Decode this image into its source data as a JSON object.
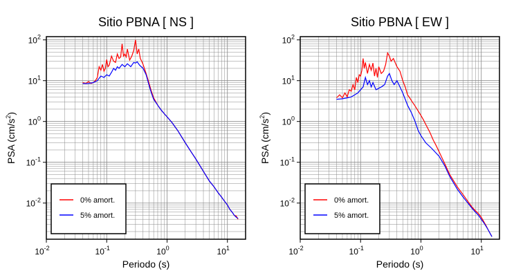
{
  "chart_data": [
    {
      "type": "line",
      "title": "Sitio PBNA [ NS ]",
      "xlabel": "Periodo (s)",
      "ylabel_main": "PSA (cm/s",
      "ylabel_sup": "2",
      "ylabel_tail": ")",
      "xscale": "log",
      "yscale": "log",
      "xlim": [
        0.01,
        20
      ],
      "ylim": [
        0.0013,
        120
      ],
      "grid": true,
      "legend_placement": "bottom-left",
      "x_ticks": [
        {
          "base": "10",
          "exp": "-2",
          "value": 0.01
        },
        {
          "base": "10",
          "exp": "-1",
          "value": 0.1
        },
        {
          "base": "10",
          "exp": "0",
          "value": 1
        },
        {
          "base": "10",
          "exp": "1",
          "value": 10
        }
      ],
      "y_ticks": [
        {
          "base": "10",
          "exp": "-2",
          "value": 0.01
        },
        {
          "base": "10",
          "exp": "-1",
          "value": 0.1
        },
        {
          "base": "10",
          "exp": "0",
          "value": 1
        },
        {
          "base": "10",
          "exp": "1",
          "value": 10
        },
        {
          "base": "10",
          "exp": "2",
          "value": 100
        }
      ],
      "series": [
        {
          "name": "0% amort.",
          "color": "#ff0000",
          "x": [
            0.04,
            0.045,
            0.05,
            0.055,
            0.06,
            0.065,
            0.07,
            0.075,
            0.08,
            0.085,
            0.09,
            0.095,
            0.1,
            0.105,
            0.11,
            0.12,
            0.13,
            0.14,
            0.15,
            0.16,
            0.17,
            0.18,
            0.19,
            0.2,
            0.21,
            0.22,
            0.24,
            0.26,
            0.28,
            0.3,
            0.32,
            0.34,
            0.36,
            0.38,
            0.4,
            0.45,
            0.5,
            0.55,
            0.6,
            0.7,
            0.8,
            0.9,
            1.0,
            1.2,
            1.5,
            2.0,
            2.5,
            3.0,
            4.0,
            5.0,
            6.0,
            7.0,
            8.0,
            9.0,
            10.0,
            11.0,
            12.0,
            13.0,
            14.0,
            15.0
          ],
          "y": [
            9,
            8.5,
            9.5,
            8.5,
            9,
            10,
            12,
            22,
            18,
            25,
            17,
            20,
            33,
            22,
            24,
            40,
            30,
            28,
            45,
            35,
            38,
            80,
            40,
            45,
            38,
            60,
            32,
            40,
            55,
            100,
            45,
            60,
            35,
            30,
            25,
            15,
            9,
            5.5,
            3.8,
            2.5,
            1.9,
            1.55,
            1.3,
            0.95,
            0.6,
            0.3,
            0.18,
            0.12,
            0.06,
            0.035,
            0.025,
            0.018,
            0.014,
            0.011,
            0.009,
            0.007,
            0.006,
            0.005,
            0.0048,
            0.004
          ]
        },
        {
          "name": "5% amort.",
          "color": "#0000ff",
          "x": [
            0.04,
            0.05,
            0.06,
            0.07,
            0.08,
            0.09,
            0.1,
            0.11,
            0.12,
            0.13,
            0.14,
            0.15,
            0.16,
            0.18,
            0.2,
            0.22,
            0.25,
            0.28,
            0.3,
            0.32,
            0.35,
            0.4,
            0.45,
            0.5,
            0.55,
            0.6,
            0.7,
            0.8,
            0.9,
            1.0,
            1.2,
            1.5,
            2.0,
            2.5,
            3.0,
            4.0,
            5.0,
            6.0,
            7.0,
            8.0,
            9.0,
            10.0,
            11.0,
            12.0,
            13.0,
            14.0,
            15.0
          ],
          "y": [
            8.5,
            8.5,
            9,
            10,
            13,
            12,
            14,
            13,
            16,
            20,
            18,
            22,
            20,
            25,
            22,
            26,
            22,
            28,
            27,
            29,
            24,
            20,
            14,
            8,
            5,
            3.5,
            2.5,
            1.9,
            1.55,
            1.3,
            0.95,
            0.6,
            0.3,
            0.18,
            0.12,
            0.06,
            0.035,
            0.025,
            0.018,
            0.014,
            0.011,
            0.009,
            0.007,
            0.006,
            0.005,
            0.0045,
            0.0042
          ]
        }
      ]
    },
    {
      "type": "line",
      "title": "Sitio PBNA [ EW ]",
      "xlabel": "Periodo (s)",
      "ylabel_main": "PSA (cm/s",
      "ylabel_sup": "2",
      "ylabel_tail": ")",
      "xscale": "log",
      "yscale": "log",
      "xlim": [
        0.01,
        20
      ],
      "ylim": [
        0.0013,
        120
      ],
      "grid": true,
      "legend_placement": "bottom-left",
      "x_ticks": [
        {
          "base": "10",
          "exp": "-2",
          "value": 0.01
        },
        {
          "base": "10",
          "exp": "-1",
          "value": 0.1
        },
        {
          "base": "10",
          "exp": "0",
          "value": 1
        },
        {
          "base": "10",
          "exp": "1",
          "value": 10
        }
      ],
      "y_ticks": [
        {
          "base": "10",
          "exp": "-2",
          "value": 0.01
        },
        {
          "base": "10",
          "exp": "-1",
          "value": 0.1
        },
        {
          "base": "10",
          "exp": "0",
          "value": 1
        },
        {
          "base": "10",
          "exp": "1",
          "value": 10
        },
        {
          "base": "10",
          "exp": "2",
          "value": 100
        }
      ],
      "series": [
        {
          "name": "0% amort.",
          "color": "#ff0000",
          "x": [
            0.04,
            0.045,
            0.05,
            0.055,
            0.06,
            0.065,
            0.07,
            0.075,
            0.08,
            0.085,
            0.09,
            0.095,
            0.1,
            0.105,
            0.11,
            0.115,
            0.12,
            0.13,
            0.14,
            0.15,
            0.16,
            0.17,
            0.18,
            0.19,
            0.2,
            0.22,
            0.24,
            0.26,
            0.28,
            0.3,
            0.32,
            0.35,
            0.4,
            0.45,
            0.5,
            0.55,
            0.6,
            0.65,
            0.7,
            0.8,
            0.9,
            1.0,
            1.1,
            1.2,
            1.4,
            1.6,
            1.8,
            2.0,
            2.5,
            3.0,
            4.0,
            5.0,
            6.0,
            7.0,
            8.0,
            9.0,
            10.0,
            11.0,
            12.0,
            13.0,
            14.0,
            15.0
          ],
          "y": [
            3.8,
            4.5,
            3.8,
            5,
            4,
            6,
            5.5,
            8,
            6,
            12,
            9,
            14,
            13,
            18,
            35,
            20,
            28,
            15,
            25,
            18,
            27,
            13,
            20,
            12,
            22,
            15,
            17,
            25,
            48,
            40,
            30,
            35,
            22,
            17,
            10,
            7,
            4.5,
            3.8,
            3.2,
            2.4,
            1.8,
            1.4,
            1.1,
            0.85,
            0.55,
            0.35,
            0.25,
            0.18,
            0.09,
            0.05,
            0.025,
            0.016,
            0.011,
            0.008,
            0.0065,
            0.0055,
            0.0045,
            0.0035,
            0.0028,
            0.0022,
            0.0018,
            0.0015
          ]
        },
        {
          "name": "5% amort.",
          "color": "#0000ff",
          "x": [
            0.04,
            0.05,
            0.06,
            0.07,
            0.08,
            0.09,
            0.1,
            0.11,
            0.12,
            0.13,
            0.14,
            0.15,
            0.16,
            0.18,
            0.2,
            0.22,
            0.25,
            0.28,
            0.3,
            0.33,
            0.36,
            0.4,
            0.45,
            0.5,
            0.55,
            0.6,
            0.7,
            0.8,
            0.9,
            1.0,
            1.2,
            1.5,
            2.0,
            2.5,
            3.0,
            4.0,
            5.0,
            6.0,
            7.0,
            8.0,
            9.0,
            10.0,
            11.0,
            12.0,
            13.0,
            14.0,
            15.0
          ],
          "y": [
            3.5,
            3.6,
            3.8,
            4,
            4.5,
            5,
            6,
            7,
            12,
            8,
            10,
            7,
            9,
            6,
            6.5,
            7,
            8,
            13,
            15,
            10,
            8,
            10,
            7,
            5,
            3.5,
            2.5,
            1.6,
            1.0,
            0.6,
            0.45,
            0.3,
            0.22,
            0.14,
            0.08,
            0.045,
            0.022,
            0.014,
            0.01,
            0.0075,
            0.006,
            0.005,
            0.004,
            0.0033,
            0.0027,
            0.0022,
            0.0018,
            0.0015
          ]
        }
      ]
    }
  ]
}
